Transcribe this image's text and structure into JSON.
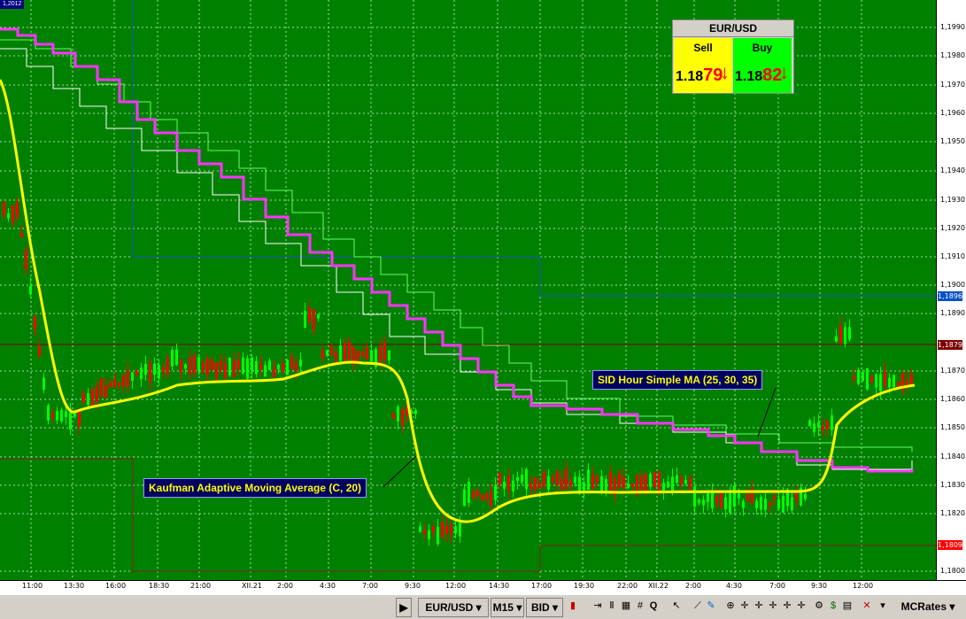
{
  "corner_price": "1,2012",
  "quote": {
    "pair": "EUR/USD",
    "sell_label": "Sell",
    "buy_label": "Buy",
    "sell_prefix": "1.18",
    "sell_big": "79",
    "buy_prefix": "1.18",
    "buy_big": "82",
    "arrow": "↓",
    "sell_color": "#ffff00",
    "buy_color": "#00ff00"
  },
  "labels": {
    "sid": "SID Hour Simple MA (25, 30, 35)",
    "kama": "Kaufman Adaptive Moving Average (C, 20)"
  },
  "price_axis": {
    "ticks": [
      "1,1990",
      "1,1980",
      "1,1970",
      "1,1960",
      "1,1950",
      "1,1940",
      "1,1930",
      "1,1920",
      "1,1910",
      "1,1900",
      "1,1890",
      "1,1870",
      "1,1860",
      "1,1850",
      "1,1840",
      "1,1830",
      "1,1820",
      "1,1800"
    ],
    "tag_blue": "1,1896",
    "tag_current": "1,1879",
    "tag_red": "1,1809"
  },
  "time_axis": [
    "11:00",
    "13:30",
    "16:00",
    "18:30",
    "21:00",
    "XII.21",
    "2:00",
    "4:30",
    "7:00",
    "9:30",
    "12:00",
    "14:30",
    "17:00",
    "19:30",
    "22:00",
    "XII.22",
    "2:00",
    "4:30",
    "7:00",
    "9:30",
    "12:00"
  ],
  "toolbar": {
    "symbol": "EUR/USD",
    "timeframe": "M15",
    "quote_type": "BID",
    "feed": "MCRates"
  },
  "colors": {
    "background": "#008000",
    "candle_up": "#00ff00",
    "candle_down": "#ff0000",
    "kama": "#ffff00",
    "sid_ma": "#ff33ff"
  }
}
